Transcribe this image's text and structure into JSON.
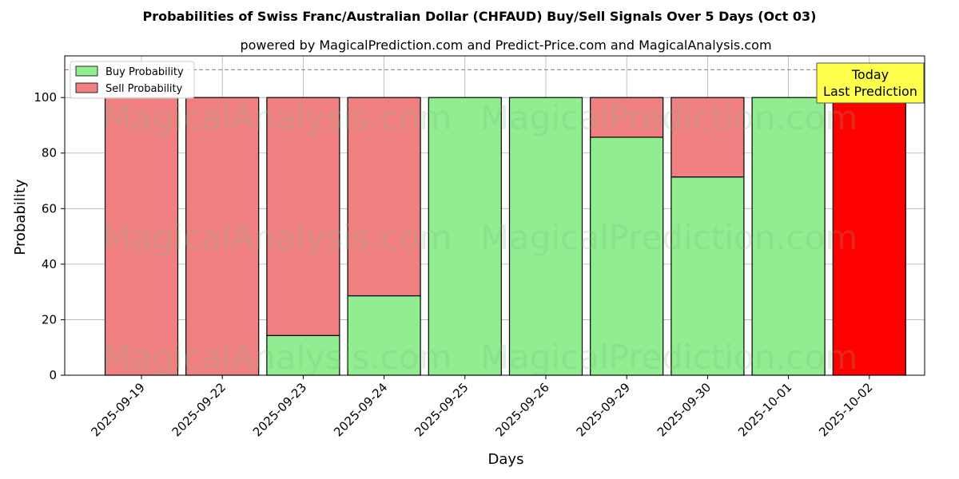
{
  "chart_data": {
    "type": "bar",
    "stacked": true,
    "title": "Probabilities of Swiss Franc/Australian Dollar (CHFAUD) Buy/Sell Signals Over 5 Days (Oct 03)",
    "subtitle": "powered by MagicalPrediction.com and Predict-Price.com and MagicalAnalysis.com",
    "xlabel": "Days",
    "ylabel": "Probability",
    "ylim": [
      0,
      115
    ],
    "yticks": [
      0,
      20,
      40,
      60,
      80,
      100
    ],
    "grid": true,
    "legend_position": "top-left",
    "reference_line": 110,
    "categories": [
      "2025-09-19",
      "2025-09-22",
      "2025-09-23",
      "2025-09-24",
      "2025-09-25",
      "2025-09-26",
      "2025-09-29",
      "2025-09-30",
      "2025-10-01",
      "2025-10-02"
    ],
    "series": [
      {
        "name": "Buy Probability",
        "color": "#90ee90",
        "values": [
          0,
          0,
          14.3,
          28.6,
          100,
          100,
          85.7,
          71.4,
          100,
          0
        ]
      },
      {
        "name": "Sell Probability",
        "color": "#f08080",
        "values": [
          100,
          100,
          85.7,
          71.4,
          0,
          0,
          14.3,
          28.6,
          0,
          0
        ]
      }
    ],
    "highlight": {
      "index": 9,
      "value": 100,
      "color": "#ff0000"
    },
    "annotation": {
      "lines": [
        "Today",
        "Last Prediction"
      ],
      "background": "#ffff4d"
    },
    "watermarks": [
      "MagicalAnalysis.com",
      "MagicalPrediction.com"
    ]
  }
}
